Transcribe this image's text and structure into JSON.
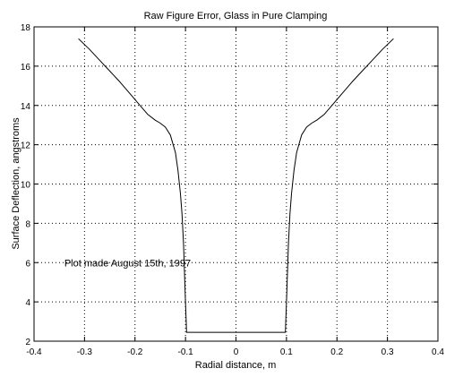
{
  "chart_data": {
    "type": "line",
    "title": "Raw Figure Error, Glass in Pure Clamping",
    "xlabel": "Radial distance, m",
    "ylabel": "Surface Deflection, angstroms",
    "xlim": [
      -0.4,
      0.4
    ],
    "ylim": [
      2,
      18
    ],
    "xticks": [
      -0.4,
      -0.3,
      -0.2,
      -0.1,
      0,
      0.1,
      0.2,
      0.3,
      0.4
    ],
    "xtick_labels": [
      "-0.4",
      "-0.3",
      "-0.2",
      "-0.1",
      "0",
      "0.1",
      "0.2",
      "0.3",
      "0.4"
    ],
    "yticks": [
      2,
      4,
      6,
      8,
      10,
      12,
      14,
      16,
      18
    ],
    "ytick_labels": [
      "2",
      "4",
      "6",
      "8",
      "10",
      "12",
      "14",
      "16",
      "18"
    ],
    "grid": "dotted",
    "annotation": {
      "text": "Plot made August 15th, 1997",
      "x": -0.34,
      "y": 6.0
    },
    "series": [
      {
        "x": [
          -0.312,
          -0.29,
          -0.27,
          -0.25,
          -0.23,
          -0.21,
          -0.19,
          -0.175,
          -0.16,
          -0.15,
          -0.14,
          -0.13,
          -0.12,
          -0.115,
          -0.11,
          -0.107,
          -0.104,
          -0.102,
          -0.1,
          -0.0985,
          -0.098,
          0.098,
          0.0985,
          0.1,
          0.102,
          0.104,
          0.107,
          0.11,
          0.115,
          0.12,
          0.13,
          0.14,
          0.15,
          0.16,
          0.175,
          0.19,
          0.21,
          0.23,
          0.25,
          0.27,
          0.29,
          0.312
        ],
        "y": [
          17.4,
          16.85,
          16.3,
          15.75,
          15.2,
          14.6,
          14.0,
          13.55,
          13.25,
          13.1,
          12.9,
          12.5,
          11.6,
          10.7,
          9.5,
          8.5,
          7.0,
          5.5,
          4.0,
          2.9,
          2.45,
          2.45,
          2.9,
          4.0,
          5.5,
          7.0,
          8.5,
          9.5,
          10.7,
          11.6,
          12.5,
          12.9,
          13.1,
          13.25,
          13.55,
          14.0,
          14.6,
          15.2,
          15.75,
          16.3,
          16.85,
          17.4
        ]
      }
    ]
  }
}
